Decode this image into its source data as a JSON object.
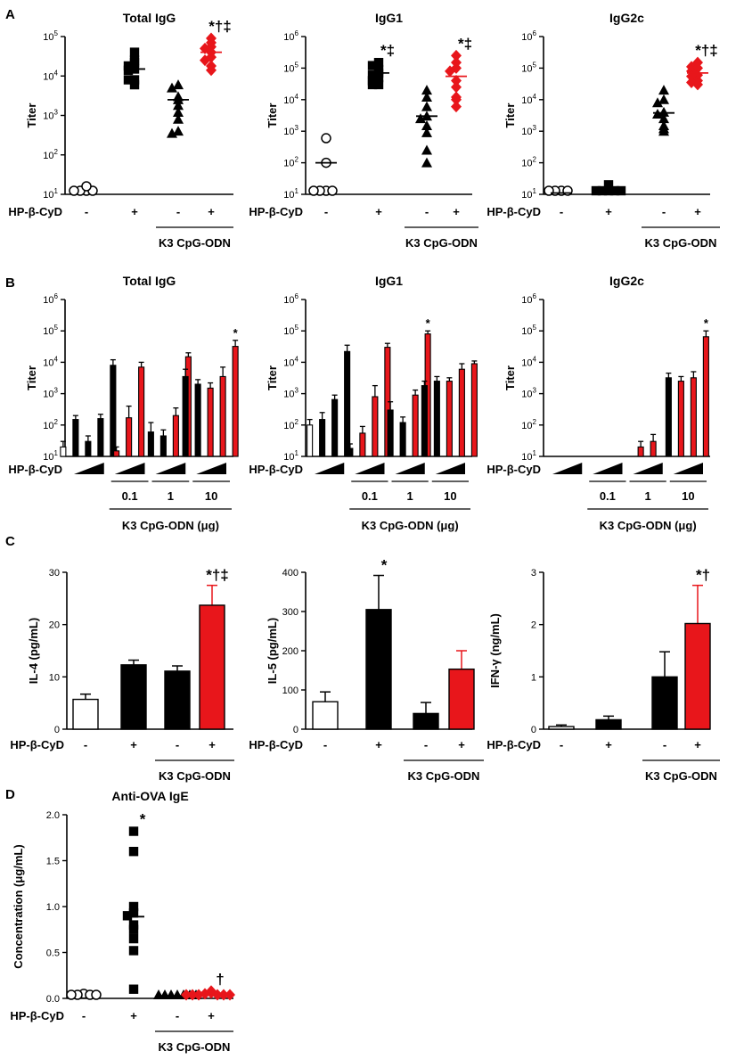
{
  "figure": {
    "colors": {
      "black": "#000000",
      "red": "#e8161b",
      "white": "#ffffff"
    },
    "treatment_label": "HP-β-CyD",
    "group_label": "K3 CpG-ODN",
    "group_label_ug": "K3 CpG-ODN (μg)",
    "minus": "-",
    "plus": "+",
    "y_titer": "Titer",
    "panels": {
      "A": "A",
      "B": "B",
      "C": "C",
      "D": "D"
    }
  },
  "chart_data": [
    {
      "id": "A1",
      "panel": "A",
      "type": "scatter",
      "title": "Total IgG",
      "ylabel": "Titer",
      "yscale": "log",
      "ylim": [
        10,
        100000
      ],
      "yticks": [
        {
          "b": "10",
          "e": "1"
        },
        {
          "b": "10",
          "e": "2"
        },
        {
          "b": "10",
          "e": "3"
        },
        {
          "b": "10",
          "e": "4"
        },
        {
          "b": "10",
          "e": "5"
        }
      ],
      "groups": [
        {
          "x": "-",
          "marker": "circle",
          "color": "#ffffff",
          "values": [
            12,
            12,
            12,
            12,
            16
          ],
          "mean": null
        },
        {
          "x": "+",
          "marker": "square",
          "color": "#000000",
          "values": [
            40000,
            25000,
            22000,
            18000,
            15000,
            14000,
            8000,
            8000,
            6000
          ],
          "mean": 15000
        },
        {
          "x": "-",
          "marker": "triangle",
          "color": "#000000",
          "values": [
            6000,
            5000,
            3000,
            2500,
            1800,
            1200,
            800,
            400,
            350
          ],
          "mean": 2500
        },
        {
          "x": "+",
          "marker": "diamond",
          "color": "#e8161b",
          "values": [
            90000,
            70000,
            55000,
            50000,
            40000,
            30000,
            25000,
            18000,
            14000
          ],
          "mean": 40000
        }
      ],
      "significance": [
        {
          "group": 3,
          "text": "*†‡"
        }
      ]
    },
    {
      "id": "A2",
      "panel": "A",
      "type": "scatter",
      "title": "IgG1",
      "ylabel": "Titer",
      "yscale": "log",
      "ylim": [
        10,
        1000000
      ],
      "yticks": [
        {
          "b": "10",
          "e": "1"
        },
        {
          "b": "10",
          "e": "2"
        },
        {
          "b": "10",
          "e": "3"
        },
        {
          "b": "10",
          "e": "4"
        },
        {
          "b": "10",
          "e": "5"
        },
        {
          "b": "10",
          "e": "6"
        }
      ],
      "groups": [
        {
          "x": "-",
          "marker": "circle",
          "color": "#ffffff",
          "values": [
            600,
            100,
            12,
            12,
            12,
            12
          ],
          "mean": 100
        },
        {
          "x": "+",
          "marker": "square",
          "color": "#000000",
          "values": [
            150000,
            120000,
            90000,
            70000,
            60000,
            50000,
            40000,
            30000,
            30000
          ],
          "mean": 70000
        },
        {
          "x": "-",
          "marker": "triangle",
          "color": "#000000",
          "values": [
            20000,
            12000,
            6000,
            3000,
            2500,
            1500,
            900,
            250,
            100
          ],
          "mean": 3000
        },
        {
          "x": "+",
          "marker": "diamond",
          "color": "#e8161b",
          "values": [
            250000,
            150000,
            100000,
            80000,
            40000,
            25000,
            12000,
            10000,
            6000
          ],
          "mean": 55000
        }
      ],
      "significance": [
        {
          "group": 1,
          "text": "*‡"
        },
        {
          "group": 3,
          "text": "*‡"
        }
      ]
    },
    {
      "id": "A3",
      "panel": "A",
      "type": "scatter",
      "title": "IgG2c",
      "ylabel": "Titer",
      "yscale": "log",
      "ylim": [
        10,
        1000000
      ],
      "yticks": [
        {
          "b": "10",
          "e": "1"
        },
        {
          "b": "10",
          "e": "2"
        },
        {
          "b": "10",
          "e": "3"
        },
        {
          "b": "10",
          "e": "4"
        },
        {
          "b": "10",
          "e": "5"
        },
        {
          "b": "10",
          "e": "6"
        }
      ],
      "groups": [
        {
          "x": "-",
          "marker": "circle",
          "color": "#ffffff",
          "values": [
            11,
            11,
            11,
            11
          ],
          "mean": 11
        },
        {
          "x": "+",
          "marker": "square",
          "color": "#000000",
          "values": [
            20,
            11,
            11,
            11,
            11,
            11
          ],
          "mean": 11
        },
        {
          "x": "-",
          "marker": "triangle",
          "color": "#000000",
          "values": [
            20000,
            10000,
            8000,
            4000,
            3500,
            2500,
            1500,
            1200,
            1000
          ],
          "mean": 3800
        },
        {
          "x": "+",
          "marker": "diamond",
          "color": "#e8161b",
          "values": [
            150000,
            110000,
            100000,
            80000,
            60000,
            55000,
            40000,
            35000,
            30000
          ],
          "mean": 70000
        }
      ],
      "significance": [
        {
          "group": 3,
          "text": "*†‡"
        }
      ]
    },
    {
      "id": "B1",
      "panel": "B",
      "type": "bar",
      "title": "Total IgG",
      "ylabel": "Titer",
      "yscale": "log",
      "ylim": [
        10,
        1000000
      ],
      "yticks": [
        {
          "b": "10",
          "e": "1"
        },
        {
          "b": "10",
          "e": "2"
        },
        {
          "b": "10",
          "e": "3"
        },
        {
          "b": "10",
          "e": "4"
        },
        {
          "b": "10",
          "e": "5"
        },
        {
          "b": "10",
          "e": "6"
        }
      ],
      "doses": [
        "0.1",
        "1",
        "10"
      ],
      "blocks": [
        {
          "bars": [
            {
              "c": "w",
              "v": 20,
              "e": 30
            },
            {
              "c": "b",
              "v": 150,
              "e": 200
            },
            {
              "c": "b",
              "v": 30,
              "e": 45
            },
            {
              "c": "b",
              "v": 160,
              "e": 220
            },
            {
              "c": "b",
              "v": 8000,
              "e": 12000
            }
          ]
        },
        {
          "bars": [
            {
              "c": "r",
              "v": 15,
              "e": 20
            },
            {
              "c": "r",
              "v": 170,
              "e": 400
            },
            {
              "c": "r",
              "v": 7000,
              "e": 10000
            }
          ]
        },
        {
          "bars": [
            {
              "c": "b",
              "v": 60,
              "e": 120
            },
            {
              "c": "b",
              "v": 45,
              "e": 70
            },
            {
              "c": "r",
              "v": 200,
              "e": 350
            },
            {
              "c": "r",
              "v": 15000,
              "e": 20000
            }
          ]
        },
        {
          "bars": [
            {
              "c": "b",
              "v": 3500,
              "e": 6000
            },
            {
              "c": "b",
              "v": 2000,
              "e": 2800
            },
            {
              "c": "r",
              "v": 1500,
              "e": 2200
            },
            {
              "c": "r",
              "v": 3500,
              "e": 7000
            },
            {
              "c": "r",
              "v": 32000,
              "e": 50000
            }
          ]
        }
      ],
      "significance": [
        {
          "block": 3,
          "bar": 4,
          "text": "*"
        }
      ]
    },
    {
      "id": "B2",
      "panel": "B",
      "type": "bar",
      "title": "IgG1",
      "ylabel": "Titer",
      "yscale": "log",
      "ylim": [
        10,
        1000000
      ],
      "yticks": [
        {
          "b": "10",
          "e": "1"
        },
        {
          "b": "10",
          "e": "2"
        },
        {
          "b": "10",
          "e": "3"
        },
        {
          "b": "10",
          "e": "4"
        },
        {
          "b": "10",
          "e": "5"
        },
        {
          "b": "10",
          "e": "6"
        }
      ],
      "doses": [
        "0.1",
        "1",
        "10"
      ],
      "blocks": [
        {
          "bars": [
            {
              "c": "w",
              "v": 100,
              "e": 150
            },
            {
              "c": "b",
              "v": 150,
              "e": 250
            },
            {
              "c": "b",
              "v": 650,
              "e": 900
            },
            {
              "c": "b",
              "v": 22000,
              "e": 35000
            }
          ]
        },
        {
          "bars": [
            {
              "c": "b",
              "v": 18,
              "e": 25
            },
            {
              "c": "r",
              "v": 55,
              "e": 90
            },
            {
              "c": "r",
              "v": 800,
              "e": 1800
            },
            {
              "c": "r",
              "v": 30000,
              "e": 40000
            }
          ]
        },
        {
          "bars": [
            {
              "c": "b",
              "v": 300,
              "e": 550
            },
            {
              "c": "b",
              "v": 120,
              "e": 180
            },
            {
              "c": "r",
              "v": 900,
              "e": 1300
            },
            {
              "c": "r",
              "v": 80000,
              "e": 100000
            }
          ]
        },
        {
          "bars": [
            {
              "c": "b",
              "v": 1800,
              "e": 2500
            },
            {
              "c": "b",
              "v": 2500,
              "e": 3500
            },
            {
              "c": "r",
              "v": 2500,
              "e": 3200
            },
            {
              "c": "r",
              "v": 6000,
              "e": 9000
            },
            {
              "c": "r",
              "v": 9000,
              "e": 11000
            }
          ]
        }
      ],
      "significance": [
        {
          "block": 2,
          "bar": 3,
          "text": "*"
        }
      ]
    },
    {
      "id": "B3",
      "panel": "B",
      "type": "bar",
      "title": "IgG2c",
      "ylabel": "Titer",
      "yscale": "log",
      "ylim": [
        10,
        1000000
      ],
      "yticks": [
        {
          "b": "10",
          "e": "1"
        },
        {
          "b": "10",
          "e": "2"
        },
        {
          "b": "10",
          "e": "3"
        },
        {
          "b": "10",
          "e": "4"
        },
        {
          "b": "10",
          "e": "5"
        },
        {
          "b": "10",
          "e": "6"
        }
      ],
      "doses": [
        "0.1",
        "1",
        "10"
      ],
      "blocks": [
        {
          "bars": []
        },
        {
          "bars": []
        },
        {
          "bars": [
            {
              "c": "r",
              "v": 20,
              "e": 30
            },
            {
              "c": "r",
              "v": 30,
              "e": 50
            }
          ]
        },
        {
          "bars": [
            {
              "c": "b",
              "v": 3200,
              "e": 4500
            },
            {
              "c": "r",
              "v": 2500,
              "e": 3500
            },
            {
              "c": "r",
              "v": 3200,
              "e": 5000
            },
            {
              "c": "r",
              "v": 65000,
              "e": 100000
            }
          ]
        }
      ],
      "significance": [
        {
          "block": 3,
          "bar": 3,
          "text": "*"
        }
      ]
    },
    {
      "id": "C1",
      "panel": "C",
      "type": "bar",
      "title": "",
      "ylabel": "IL-4 (pg/mL)",
      "yscale": "linear",
      "ylim": [
        0,
        30
      ],
      "yticks": [
        {
          "t": "0",
          "v": 0
        },
        {
          "t": "10",
          "v": 10
        },
        {
          "t": "20",
          "v": 20
        },
        {
          "t": "30",
          "v": 30
        }
      ],
      "bars": [
        {
          "c": "w",
          "v": 5.7,
          "e": 6.7
        },
        {
          "c": "b",
          "v": 12.3,
          "e": 13.2
        },
        {
          "c": "b",
          "v": 11.1,
          "e": 12.1
        },
        {
          "c": "r",
          "v": 23.7,
          "e": 27.5
        }
      ],
      "significance": [
        {
          "bar": 3,
          "text": "*†‡"
        }
      ]
    },
    {
      "id": "C2",
      "panel": "C",
      "type": "bar",
      "title": "",
      "ylabel": "IL-5 (pg/mL)",
      "yscale": "linear",
      "ylim": [
        0,
        400
      ],
      "yticks": [
        {
          "t": "0",
          "v": 0
        },
        {
          "t": "100",
          "v": 100
        },
        {
          "t": "200",
          "v": 200
        },
        {
          "t": "300",
          "v": 300
        },
        {
          "t": "400",
          "v": 400
        }
      ],
      "bars": [
        {
          "c": "w",
          "v": 70,
          "e": 95
        },
        {
          "c": "b",
          "v": 305,
          "e": 392
        },
        {
          "c": "b",
          "v": 40,
          "e": 68
        },
        {
          "c": "r",
          "v": 153,
          "e": 200
        }
      ],
      "significance": [
        {
          "bar": 1,
          "text": "*"
        }
      ]
    },
    {
      "id": "C3",
      "panel": "C",
      "type": "bar",
      "title": "",
      "ylabel": "IFN-γ (ng/mL)",
      "yscale": "linear",
      "ylim": [
        0,
        3
      ],
      "yticks": [
        {
          "t": "0",
          "v": 0
        },
        {
          "t": "1",
          "v": 1
        },
        {
          "t": "2",
          "v": 2
        },
        {
          "t": "3",
          "v": 3
        }
      ],
      "bars": [
        {
          "c": "w",
          "v": 0.05,
          "e": 0.08
        },
        {
          "c": "b",
          "v": 0.18,
          "e": 0.25
        },
        {
          "c": "b",
          "v": 1.0,
          "e": 1.48
        },
        {
          "c": "r",
          "v": 2.02,
          "e": 2.75
        }
      ],
      "significance": [
        {
          "bar": 3,
          "text": "*†"
        }
      ]
    },
    {
      "id": "D1",
      "panel": "D",
      "type": "scatter",
      "title": "Anti-OVA IgE",
      "ylabel": "Concentration (μg/mL)",
      "yscale": "linear",
      "ylim": [
        0,
        2.0
      ],
      "yticks": [
        {
          "t": "0.0",
          "v": 0
        },
        {
          "t": "0.5",
          "v": 0.5
        },
        {
          "t": "1.0",
          "v": 1.0
        },
        {
          "t": "1.5",
          "v": 1.5
        },
        {
          "t": "2.0",
          "v": 2.0
        }
      ],
      "groups": [
        {
          "x": "-",
          "marker": "circle",
          "color": "#ffffff",
          "values": [
            0.05,
            0.01,
            0.01,
            0.01,
            0.01
          ],
          "mean": null
        },
        {
          "x": "+",
          "marker": "square",
          "color": "#000000",
          "values": [
            1.82,
            1.6,
            1.0,
            0.93,
            0.9,
            0.8,
            0.75,
            0.65,
            0.52,
            0.1
          ],
          "mean": 0.89
        },
        {
          "x": "-",
          "marker": "triangle",
          "color": "#000000",
          "values": [
            0.03,
            0.01,
            0.01,
            0.01,
            0.01,
            0.01,
            0.01
          ],
          "mean": null
        },
        {
          "x": "+",
          "marker": "diamond",
          "color": "#e8161b",
          "values": [
            0.08,
            0.06,
            0.05,
            0.03,
            0.02,
            0.02,
            0.02,
            0.02,
            0.01
          ],
          "mean": 0.05
        }
      ],
      "significance": [
        {
          "group": 1,
          "text": "*"
        },
        {
          "group": 3,
          "text": "†"
        }
      ]
    }
  ]
}
